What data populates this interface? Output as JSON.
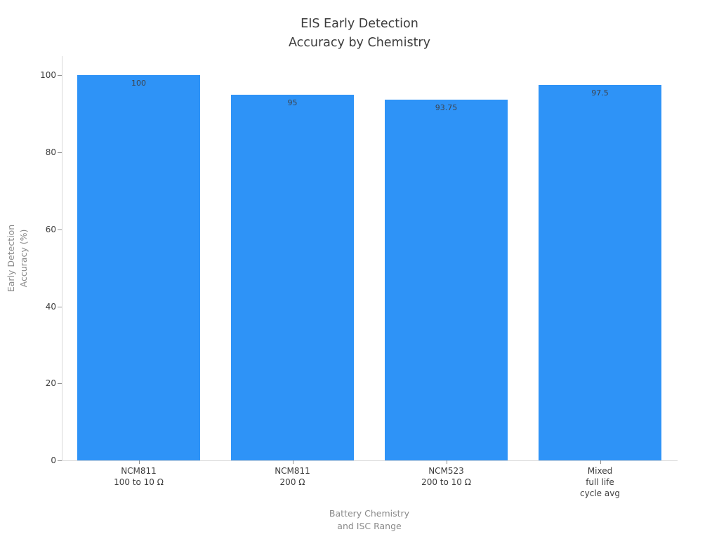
{
  "chart_data": {
    "type": "bar",
    "title": "EIS Early Detection\nAccuracy by Chemistry",
    "categories": [
      [
        "NCM811",
        "100 to 10 Ω"
      ],
      [
        "NCM811",
        "200 Ω"
      ],
      [
        "NCM523",
        "200 to 10 Ω"
      ],
      [
        "Mixed",
        "full life",
        "cycle avg"
      ]
    ],
    "values": [
      100,
      95,
      93.75,
      97.5
    ],
    "value_labels": [
      "100",
      "95",
      "93.75",
      "97.5"
    ],
    "xlabel": "Battery Chemistry\nand ISC Range",
    "ylabel": "Early Detection\nAccuracy (%)",
    "yticks": [
      0,
      20,
      40,
      60,
      80,
      100
    ],
    "ylim": [
      0,
      105
    ],
    "grid": false,
    "legend": "none",
    "bar_color": "#2e93f7"
  },
  "colors": {
    "bar": "#2e93f7",
    "axis_line": "#d9d9d9",
    "tick_mark": "#909090",
    "tick_text": "#3d3d3d",
    "title_text": "#3b3b3b",
    "axis_title_text": "#8a8a8a",
    "background": "#ffffff"
  }
}
